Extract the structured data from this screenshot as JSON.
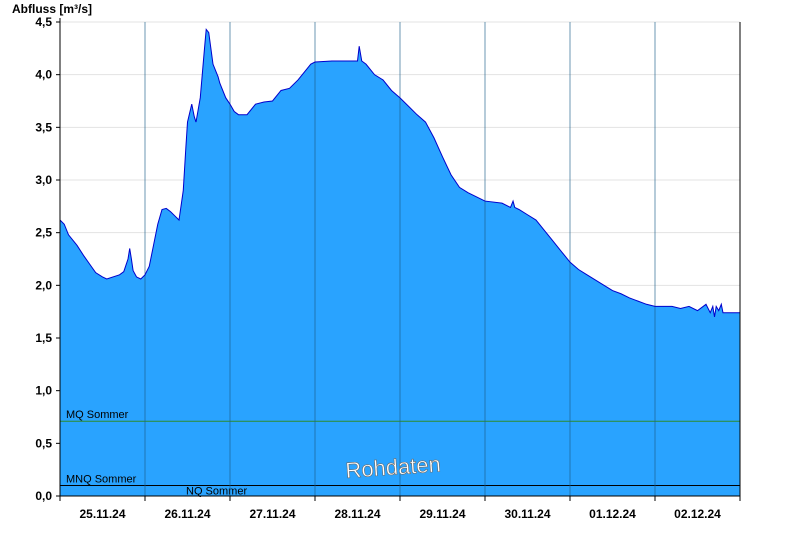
{
  "chart_data": {
    "type": "area",
    "ylabel": "Abfluss [m³/s]",
    "ylim": [
      0,
      4.5
    ],
    "yticks": [
      0,
      0.5,
      1.0,
      1.5,
      2.0,
      2.5,
      3.0,
      3.5,
      4.0,
      4.5
    ],
    "ytick_labels": [
      "0,0",
      "0,5",
      "1,0",
      "1,5",
      "2,0",
      "2,5",
      "3,0",
      "3,5",
      "4,0",
      "4,5"
    ],
    "xlim": [
      0,
      8
    ],
    "x_unit": "days from 25.11.24 00:00",
    "date_labels": [
      "25.11.24",
      "26.11.24",
      "27.11.24",
      "28.11.24",
      "29.11.24",
      "30.11.24",
      "01.12.24",
      "02.12.24"
    ],
    "grid": true,
    "watermark": "Rohdaten",
    "colors": {
      "fill": "#29a3ff",
      "outline": "#0000cc",
      "mq": "#2e8b2e",
      "nq": "#000000"
    },
    "reference_lines": [
      {
        "label": "MQ Sommer",
        "value": 0.71,
        "color": "#2e8b2e"
      },
      {
        "label": "MNQ Sommer",
        "value": 0.1,
        "color": "#000000"
      },
      {
        "label": "NQ Sommer",
        "value": 0.1,
        "color": "#000000"
      }
    ],
    "series": [
      {
        "x": [
          0.0,
          0.05,
          0.1,
          0.2,
          0.28,
          0.35,
          0.42,
          0.5,
          0.55,
          0.7,
          0.75,
          0.8,
          0.82,
          0.84,
          0.86,
          0.9,
          0.95,
          1.0,
          1.05,
          1.1,
          1.15,
          1.2,
          1.25,
          1.3,
          1.35,
          1.4,
          1.45,
          1.48,
          1.5,
          1.55,
          1.58,
          1.6,
          1.65,
          1.7,
          1.72,
          1.75,
          1.8,
          1.86,
          1.88,
          1.9,
          1.95,
          2.0,
          2.05,
          2.1,
          2.2,
          2.3,
          2.4,
          2.5,
          2.6,
          2.7,
          2.8,
          2.9,
          2.95,
          3.0,
          3.2,
          3.4,
          3.5,
          3.52,
          3.55,
          3.6,
          3.7,
          3.8,
          3.9,
          4.0,
          4.1,
          4.2,
          4.3,
          4.4,
          4.5,
          4.6,
          4.7,
          4.8,
          5.0,
          5.2,
          5.3,
          5.33,
          5.35,
          5.4,
          5.5,
          5.6,
          5.7,
          5.8,
          5.9,
          6.0,
          6.1,
          6.2,
          6.3,
          6.4,
          6.5,
          6.6,
          6.7,
          6.8,
          6.9,
          7.0,
          7.1,
          7.2,
          7.3,
          7.4,
          7.5,
          7.6,
          7.65,
          7.68,
          7.7,
          7.72,
          7.75,
          7.78,
          7.8,
          8.0
        ],
        "values": [
          2.62,
          2.58,
          2.48,
          2.38,
          2.28,
          2.2,
          2.12,
          2.08,
          2.06,
          2.1,
          2.13,
          2.25,
          2.35,
          2.25,
          2.14,
          2.08,
          2.06,
          2.1,
          2.18,
          2.38,
          2.58,
          2.72,
          2.73,
          2.7,
          2.66,
          2.62,
          2.9,
          3.3,
          3.55,
          3.72,
          3.6,
          3.55,
          3.78,
          4.25,
          4.43,
          4.4,
          4.1,
          3.98,
          3.92,
          3.88,
          3.78,
          3.72,
          3.65,
          3.62,
          3.62,
          3.72,
          3.74,
          3.75,
          3.85,
          3.87,
          3.95,
          4.05,
          4.1,
          4.12,
          4.13,
          4.13,
          4.13,
          4.27,
          4.13,
          4.1,
          4.0,
          3.95,
          3.85,
          3.78,
          3.7,
          3.62,
          3.55,
          3.4,
          3.22,
          3.05,
          2.93,
          2.88,
          2.8,
          2.78,
          2.74,
          2.8,
          2.74,
          2.72,
          2.67,
          2.62,
          2.52,
          2.42,
          2.32,
          2.22,
          2.15,
          2.1,
          2.05,
          2.0,
          1.95,
          1.92,
          1.88,
          1.85,
          1.82,
          1.8,
          1.8,
          1.8,
          1.78,
          1.8,
          1.76,
          1.82,
          1.74,
          1.8,
          1.7,
          1.8,
          1.76,
          1.82,
          1.74,
          1.74
        ]
      }
    ]
  }
}
